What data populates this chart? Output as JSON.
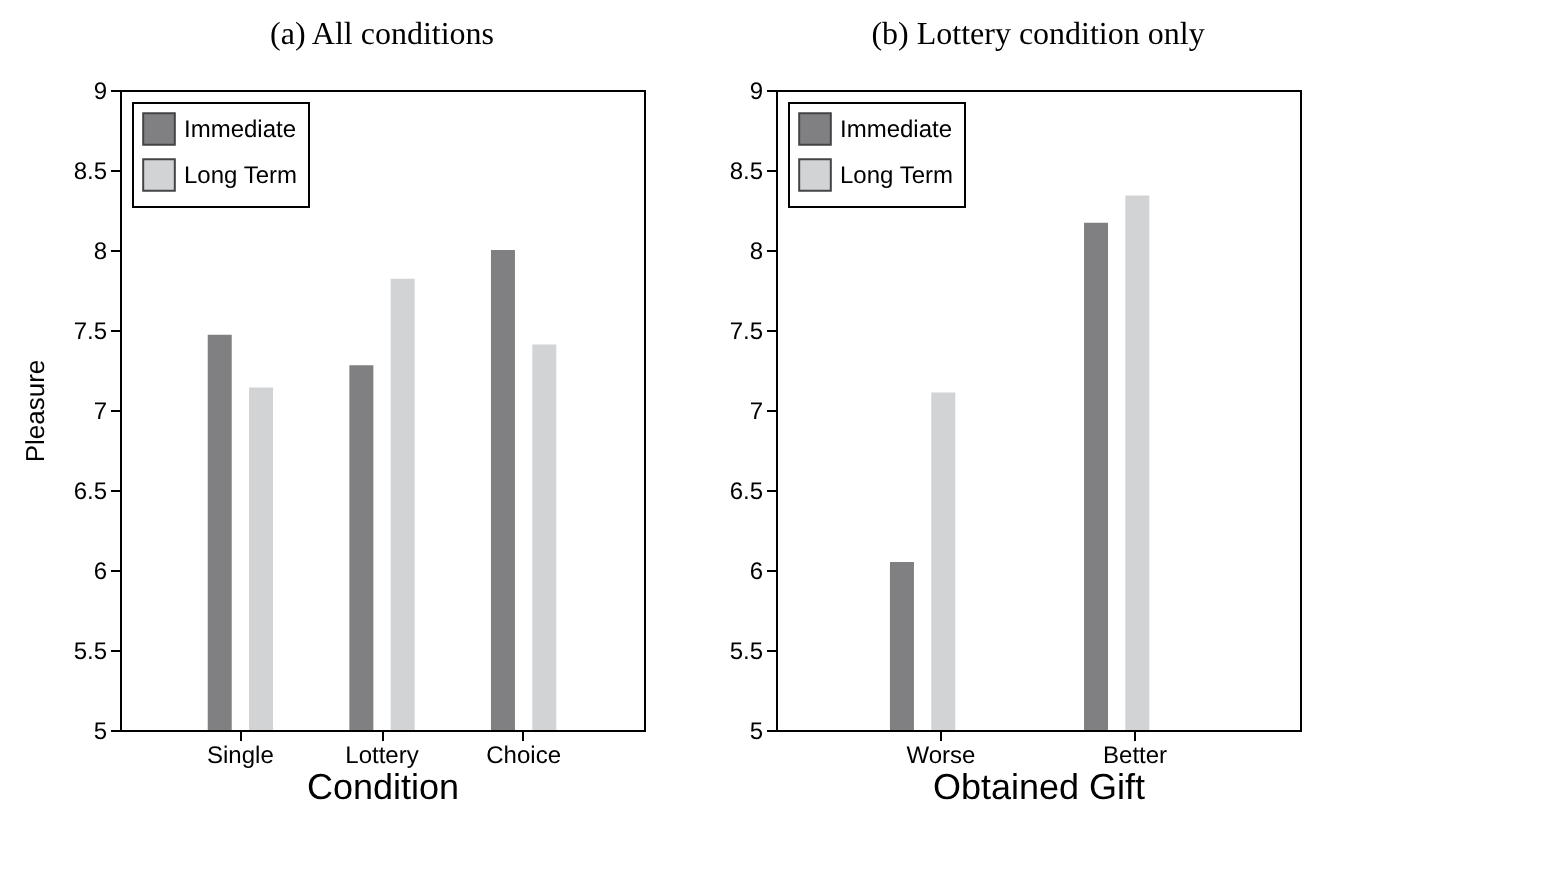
{
  "chart_data": [
    {
      "type": "bar",
      "title": "(a) All conditions",
      "xlabel": "Condition",
      "ylabel": "Pleasure",
      "categories": [
        "Single",
        "Lottery",
        "Choice"
      ],
      "series": [
        {
          "name": "Immediate",
          "color": "#808083",
          "values": [
            7.47,
            7.28,
            8.0
          ]
        },
        {
          "name": "Long Term",
          "color": "#d2d3d5",
          "values": [
            7.14,
            7.82,
            7.41
          ]
        }
      ],
      "ylim": [
        5,
        9
      ],
      "yticks": [
        5,
        5.5,
        6,
        6.5,
        7,
        7.5,
        8,
        8.5,
        9
      ],
      "grid": false,
      "legend": "top left"
    },
    {
      "type": "bar",
      "title": "(b) Lottery condition only",
      "xlabel": "Obtained Gift",
      "categories": [
        "Worse",
        "Better"
      ],
      "series": [
        {
          "name": "Immediate",
          "color": "#808083",
          "values": [
            6.05,
            8.17
          ]
        },
        {
          "name": "Long Term",
          "color": "#d2d3d5",
          "values": [
            7.11,
            8.34
          ]
        }
      ],
      "ylim": [
        5,
        9
      ],
      "yticks": [
        5,
        5.5,
        6,
        6.5,
        7,
        7.5,
        8,
        8.5,
        9
      ],
      "grid": false,
      "legend": "top left"
    }
  ]
}
